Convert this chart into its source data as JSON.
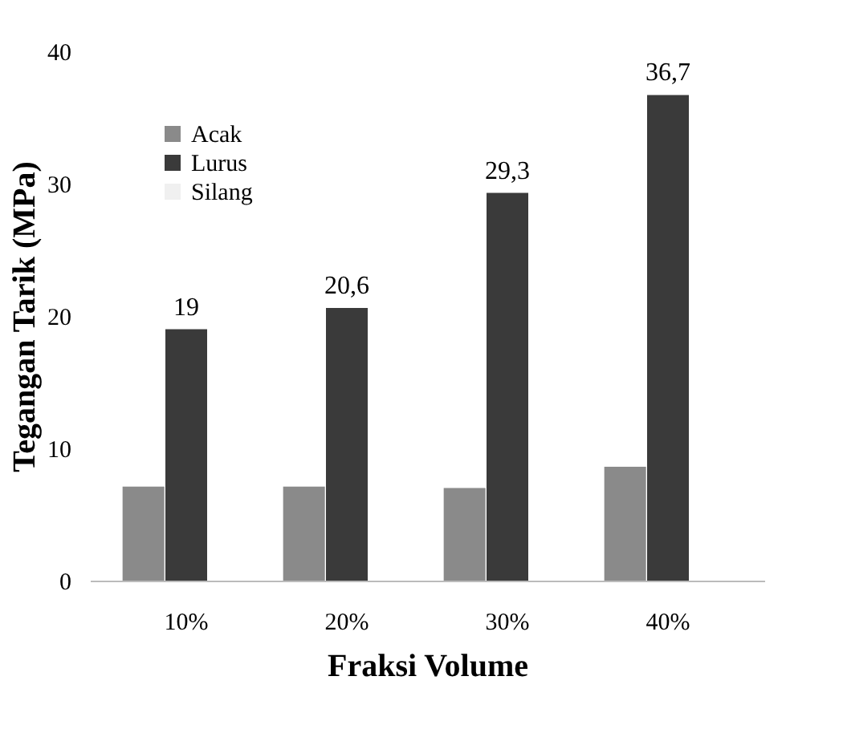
{
  "chart_data": {
    "type": "bar",
    "xlabel": "Fraksi Volume",
    "ylabel": "Tegangan Tarik (MPa)",
    "categories": [
      "10%",
      "20%",
      "30%",
      "40%"
    ],
    "series": [
      {
        "name": "Acak",
        "color": "#8a8a8a",
        "values": [
          7.1,
          7.1,
          7.0,
          8.6
        ]
      },
      {
        "name": "Lurus",
        "color": "#3a3a3a",
        "values": [
          19,
          20.6,
          29.3,
          36.7
        ],
        "value_labels": [
          "19",
          "20,6",
          "29,3",
          "36,7"
        ]
      },
      {
        "name": "Silang",
        "color": "#f0f0f0",
        "values": [
          null,
          null,
          null,
          null
        ]
      }
    ],
    "ylim": [
      0,
      40
    ],
    "yticks": [
      0,
      10,
      20,
      30,
      40
    ],
    "grid": false,
    "legend": "top left"
  }
}
